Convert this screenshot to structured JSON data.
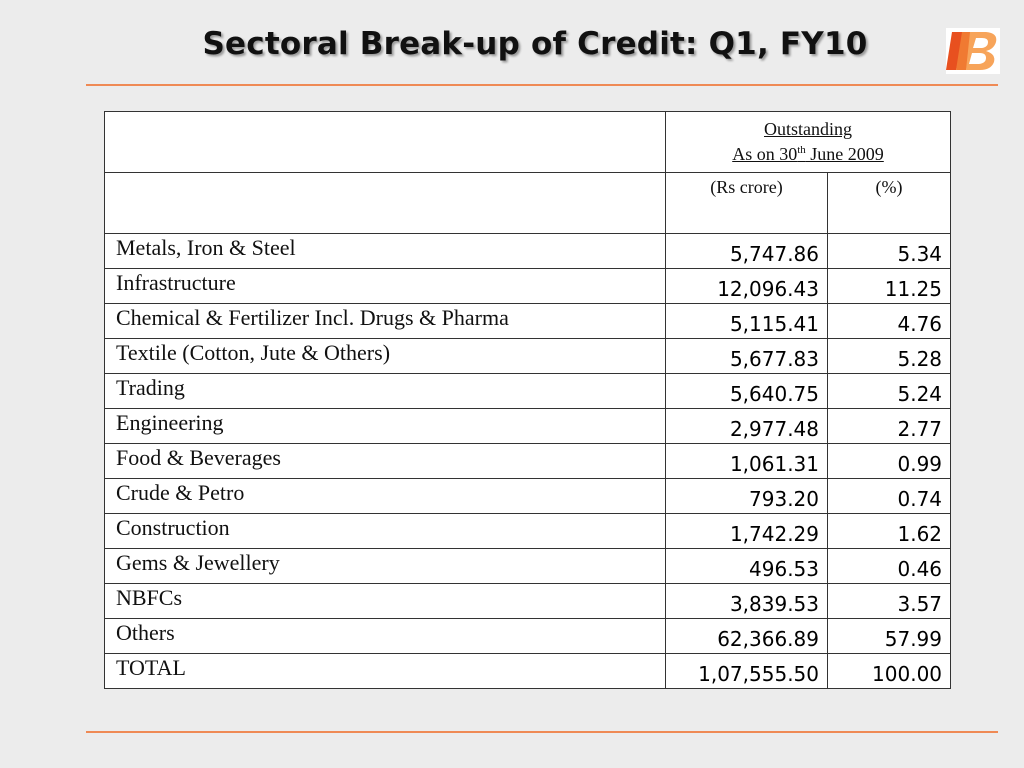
{
  "title": "Sectoral Break-up of Credit: Q1, FY10",
  "logo": {
    "icon": "bank-of-baroda-logo",
    "colors": [
      "#e8501f",
      "#f7a45a"
    ]
  },
  "accent_color": "#ef8a55",
  "table": {
    "header": {
      "outstanding": "Outstanding",
      "as_on_prefix": "As on 30",
      "as_on_sup": "th",
      "as_on_suffix": " June 2009",
      "unit_amount": "(Rs  crore)",
      "unit_percent": "(%)"
    },
    "rows": [
      {
        "sector": "Metals, Iron & Steel",
        "amount": "5,747.86",
        "percent": "5.34"
      },
      {
        "sector": "Infrastructure",
        "amount": "12,096.43",
        "percent": "11.25"
      },
      {
        "sector": "Chemical & Fertilizer Incl. Drugs & Pharma",
        "amount": "5,115.41",
        "percent": "4.76"
      },
      {
        "sector": "Textile (Cotton, Jute & Others)",
        "amount": "5,677.83",
        "percent": "5.28"
      },
      {
        "sector": "Trading",
        "amount": "5,640.75",
        "percent": "5.24"
      },
      {
        "sector": "Engineering",
        "amount": "2,977.48",
        "percent": "2.77"
      },
      {
        "sector": "Food & Beverages",
        "amount": "1,061.31",
        "percent": "0.99"
      },
      {
        "sector": "Crude & Petro",
        "amount": "793.20",
        "percent": "0.74"
      },
      {
        "sector": "Construction",
        "amount": "1,742.29",
        "percent": "1.62"
      },
      {
        "sector": "Gems & Jewellery",
        "amount": "496.53",
        "percent": "0.46"
      },
      {
        "sector": "NBFCs",
        "amount": "3,839.53",
        "percent": "3.57"
      },
      {
        "sector": "Others",
        "amount": "62,366.89",
        "percent": "57.99"
      },
      {
        "sector": "TOTAL",
        "amount": "1,07,555.50",
        "percent": "100.00"
      }
    ]
  }
}
